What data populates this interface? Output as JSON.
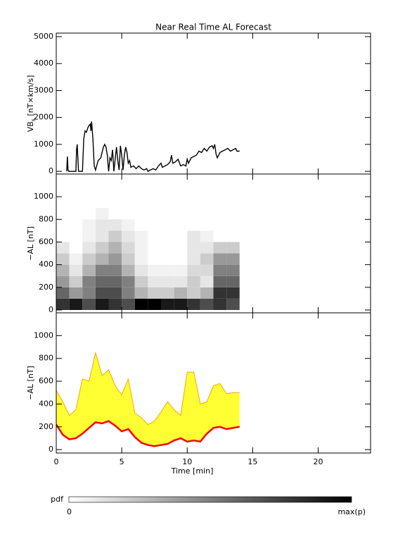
{
  "chart_data": [
    {
      "type": "line",
      "title": "Near Real Time AL Forecast",
      "ylabel": "VB",
      "ylabel_sub": "s",
      "ylabel_unit": " [nT×km/s]",
      "xlim": [
        0,
        24
      ],
      "xticks": [
        0,
        5,
        10,
        15,
        20
      ],
      "show_xticklabels": false,
      "ylim": [
        -100,
        5130
      ],
      "yticks": [
        0,
        1000,
        2000,
        3000,
        4000,
        5000
      ],
      "color": "#000000",
      "x": [
        0.8,
        0.85,
        0.9,
        0.95,
        1.5,
        1.55,
        1.6,
        1.7,
        2.0,
        2.1,
        2.2,
        2.3,
        2.4,
        2.5,
        2.6,
        2.65,
        2.7,
        2.8,
        2.9,
        3.0,
        3.2,
        3.4,
        3.5,
        3.6,
        3.7,
        3.8,
        3.9,
        4.0,
        4.1,
        4.2,
        4.3,
        4.4,
        4.6,
        4.7,
        4.8,
        4.9,
        5.0,
        5.1,
        5.2,
        5.3,
        5.4,
        5.5,
        5.6,
        5.7,
        5.9,
        6.1,
        6.3,
        6.5,
        6.7,
        6.9,
        7.0,
        7.2,
        7.4,
        7.6,
        7.8,
        8.0,
        8.1,
        8.3,
        8.5,
        8.7,
        8.8,
        8.9,
        9.1,
        9.3,
        9.5,
        9.7,
        9.9,
        10.0,
        10.1,
        10.3,
        10.5,
        10.7,
        10.9,
        11.1,
        11.3,
        11.5,
        11.7,
        11.9,
        12.0,
        12.1,
        12.2,
        12.3,
        12.5,
        12.7,
        12.9,
        13.1,
        13.3,
        13.5,
        13.7,
        13.8,
        14.0
      ],
      "values": [
        0,
        550,
        50,
        0,
        0,
        800,
        1000,
        0,
        0,
        1200,
        1500,
        1450,
        1600,
        1700,
        1750,
        1500,
        1850,
        1200,
        200,
        50,
        400,
        500,
        700,
        900,
        1000,
        900,
        600,
        0,
        500,
        400,
        800,
        0,
        900,
        400,
        50,
        950,
        600,
        50,
        600,
        900,
        700,
        300,
        400,
        150,
        200,
        100,
        200,
        100,
        50,
        100,
        0,
        50,
        100,
        50,
        200,
        300,
        150,
        200,
        250,
        350,
        600,
        300,
        350,
        450,
        200,
        250,
        200,
        450,
        300,
        500,
        550,
        600,
        750,
        700,
        850,
        750,
        900,
        950,
        850,
        1000,
        650,
        500,
        700,
        750,
        800,
        850,
        750,
        800,
        850,
        750,
        750
      ]
    },
    {
      "type": "heatmap",
      "ylabel": "−AL [nT]",
      "xlim": [
        0,
        24
      ],
      "xticks": [
        0,
        5,
        10,
        15,
        20
      ],
      "show_xticklabels": false,
      "ylim": [
        -25,
        1200
      ],
      "yticks": [
        0,
        200,
        400,
        600,
        800,
        1000
      ],
      "x_bins": [
        0,
        1,
        2,
        3,
        4,
        5,
        6,
        7,
        8,
        9,
        10,
        11,
        12,
        13,
        14
      ],
      "y_bins": [
        0,
        100,
        200,
        300,
        400,
        500,
        600,
        700,
        800,
        900
      ],
      "z": [
        [
          0.8,
          0.9,
          0.7,
          0.9,
          0.8,
          0.7,
          1.0,
          1.0,
          0.9,
          0.9,
          0.8,
          0.7,
          0.8,
          0.7
        ],
        [
          0.6,
          0.4,
          0.5,
          0.7,
          0.7,
          0.5,
          0.3,
          0.2,
          0.2,
          0.3,
          0.2,
          0.3,
          0.8,
          0.8
        ],
        [
          0.4,
          0.2,
          0.5,
          0.6,
          0.6,
          0.5,
          0.2,
          0.1,
          0.1,
          0.1,
          0.2,
          0.1,
          0.6,
          0.6
        ],
        [
          0.3,
          0.1,
          0.3,
          0.5,
          0.5,
          0.3,
          0.1,
          0.05,
          0.05,
          0.05,
          0.15,
          0.15,
          0.5,
          0.5
        ],
        [
          0.2,
          0.05,
          0.2,
          0.3,
          0.4,
          0.2,
          0.05,
          0,
          0,
          0,
          0.1,
          0.2,
          0.4,
          0.4
        ],
        [
          0.1,
          0,
          0.1,
          0.2,
          0.3,
          0.15,
          0.05,
          0,
          0,
          0,
          0.1,
          0.1,
          0.2,
          0.2
        ],
        [
          0,
          0,
          0.05,
          0.1,
          0.2,
          0.1,
          0.05,
          0,
          0,
          0,
          0.1,
          0.05,
          0,
          0
        ],
        [
          0,
          0,
          0.05,
          0.1,
          0.1,
          0.05,
          0,
          0,
          0,
          0,
          0,
          0,
          0,
          0
        ],
        [
          0,
          0,
          0,
          0.05,
          0,
          0,
          0,
          0,
          0,
          0,
          0,
          0,
          0,
          0
        ]
      ]
    },
    {
      "type": "area",
      "ylabel": "−AL [nT]",
      "xlabel": "Time [min]",
      "xlim": [
        0,
        24
      ],
      "xticks": [
        0,
        5,
        10,
        15,
        20
      ],
      "show_xticklabels": true,
      "ylim": [
        -30,
        1200
      ],
      "yticks": [
        0,
        200,
        400,
        600,
        800,
        1000
      ],
      "fill_color": "#ffff33",
      "upper_color": "#ffa500",
      "median_color": "#ff0000",
      "x": [
        0,
        0.5,
        1,
        1.5,
        2,
        2.5,
        3,
        3.5,
        4,
        4.5,
        5,
        5.5,
        6,
        6.5,
        7,
        7.5,
        8,
        8.5,
        9,
        9.5,
        10,
        10.5,
        11,
        11.5,
        12,
        12.5,
        13,
        13.5,
        14
      ],
      "upper": [
        520,
        420,
        300,
        350,
        620,
        600,
        850,
        650,
        700,
        560,
        480,
        620,
        320,
        280,
        220,
        250,
        330,
        420,
        350,
        300,
        680,
        680,
        400,
        420,
        560,
        580,
        490,
        500,
        500
      ],
      "median": [
        220,
        130,
        90,
        100,
        140,
        190,
        240,
        230,
        250,
        210,
        160,
        180,
        110,
        60,
        40,
        30,
        40,
        50,
        80,
        100,
        70,
        80,
        70,
        140,
        190,
        200,
        180,
        190,
        200
      ]
    }
  ],
  "colorbar": {
    "label": "pdf",
    "min_label": "0",
    "max_label": "max(p)",
    "colors": [
      "#ffffff",
      "#000000"
    ]
  }
}
